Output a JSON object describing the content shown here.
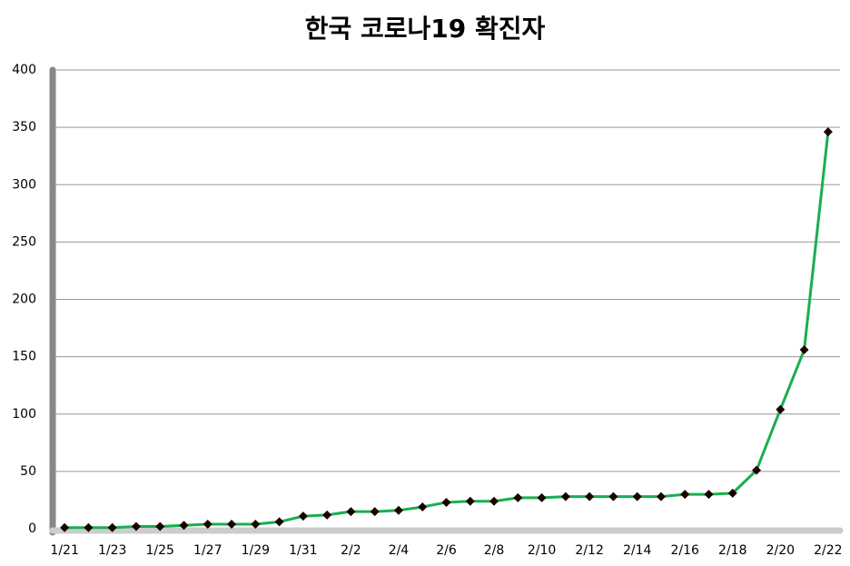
{
  "chart_data": {
    "type": "line",
    "title": "한국 코로나19 확진자",
    "categories": [
      "1/21",
      null,
      "1/23",
      null,
      "1/25",
      null,
      "1/27",
      null,
      "1/29",
      null,
      "1/31",
      null,
      "2/2",
      null,
      "2/4",
      null,
      "2/6",
      null,
      "2/8",
      null,
      "2/10",
      null,
      "2/12",
      null,
      "2/14",
      null,
      "2/16",
      null,
      "2/18",
      null,
      "2/20",
      null,
      "2/22"
    ],
    "values": [
      1,
      1,
      1,
      2,
      2,
      3,
      4,
      4,
      4,
      6,
      11,
      12,
      15,
      15,
      16,
      19,
      23,
      24,
      24,
      27,
      27,
      28,
      28,
      28,
      28,
      28,
      30,
      30,
      31,
      51,
      104,
      156,
      346
    ],
    "color": "#1aae4f",
    "marker_color": "#1a0000",
    "ylim": [
      0,
      400
    ],
    "yticks": [
      0,
      50,
      100,
      150,
      200,
      250,
      300,
      350,
      400
    ],
    "grid": true
  }
}
